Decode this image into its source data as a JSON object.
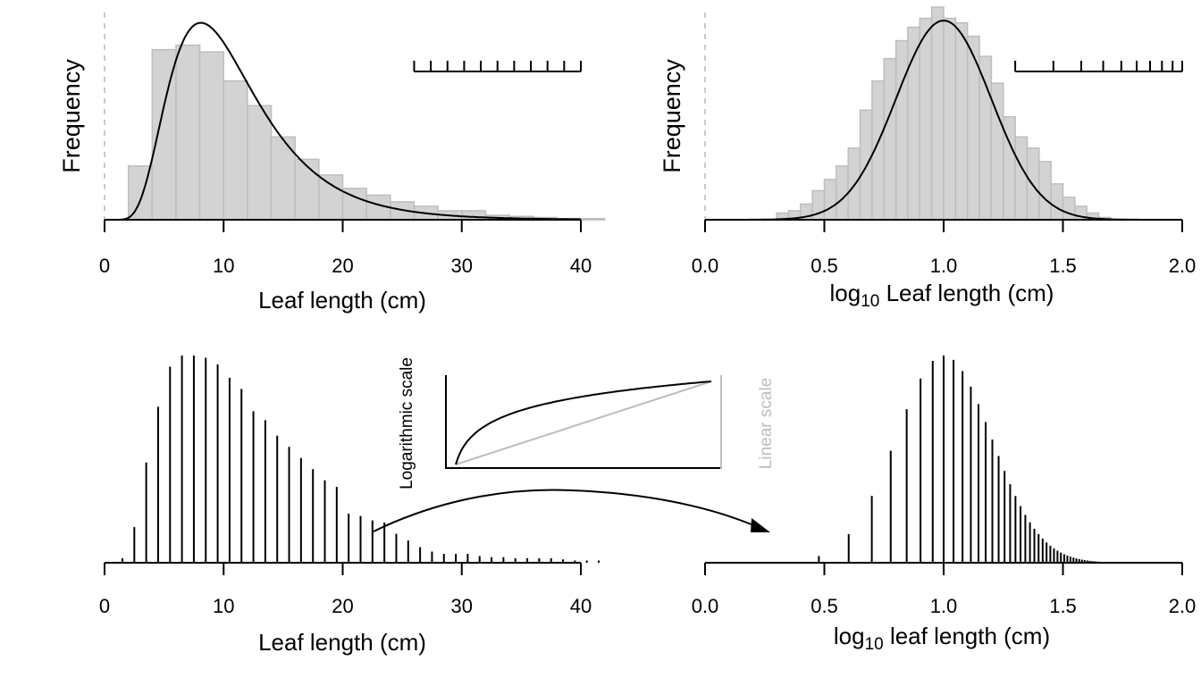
{
  "chart_data": [
    {
      "type": "bar",
      "panel": "top-left",
      "xlabel": "Leaf length (cm)",
      "ylabel": "Frequency",
      "xlim": [
        0,
        40
      ],
      "xticks": [
        "0",
        "10",
        "20",
        "30",
        "40"
      ],
      "bin_edges": [
        0,
        2,
        4,
        6,
        8,
        10,
        12,
        14,
        16,
        18,
        20,
        22,
        24,
        26,
        28,
        30,
        32,
        34,
        36,
        38,
        40,
        42
      ],
      "values": [
        0,
        24,
        76,
        78,
        75,
        62,
        51,
        37,
        27,
        20,
        14,
        11,
        8,
        6,
        4,
        4,
        2,
        1.5,
        1,
        0.5,
        0.5
      ],
      "curve": {
        "type": "lognormal",
        "mu_log10": 1.0,
        "sigma_log10": 0.2,
        "peak": 88
      },
      "scale_bar": {
        "x_start": 26,
        "x_end": 40,
        "ticks": 11
      },
      "reference_line_x": 0
    },
    {
      "type": "bar",
      "panel": "top-right",
      "xlabel_prefix": "log",
      "xlabel_sub": "10",
      "xlabel_suffix": " Leaf length (cm)",
      "ylabel": "Frequency",
      "xlim": [
        0,
        2
      ],
      "xticks": [
        "0.0",
        "0.5",
        "1.0",
        "1.5",
        "2.0"
      ],
      "bin_edges": [
        0.3,
        0.35,
        0.4,
        0.45,
        0.5,
        0.55,
        0.6,
        0.65,
        0.7,
        0.75,
        0.8,
        0.85,
        0.9,
        0.95,
        1.0,
        1.05,
        1.1,
        1.15,
        1.2,
        1.25,
        1.3,
        1.35,
        1.4,
        1.45,
        1.5,
        1.55,
        1.6,
        1.65,
        1.7
      ],
      "values": [
        3,
        4,
        7,
        13,
        18,
        24,
        32,
        49,
        62,
        72,
        80,
        86,
        90,
        95,
        90,
        88,
        82,
        73,
        61,
        46,
        37,
        32,
        26,
        16,
        10,
        6,
        3,
        1
      ],
      "curve": {
        "type": "normal",
        "mean": 1.0,
        "sd": 0.2,
        "peak": 89
      },
      "scale_bar": {
        "x_start": 1.3,
        "x_end": 2.0,
        "ticks": 10
      },
      "reference_line_x": 0
    },
    {
      "type": "spike",
      "panel": "bottom-left",
      "xlabel": "Leaf length (cm)",
      "xlim": [
        0,
        40
      ],
      "xticks": [
        "0",
        "10",
        "20",
        "30",
        "40"
      ],
      "x": [
        1.5,
        2.5,
        3.5,
        4.5,
        5.5,
        6.5,
        7.5,
        8.5,
        9.5,
        10.5,
        11.5,
        12.5,
        13.5,
        14.5,
        15.5,
        16.5,
        17.5,
        18.5,
        19.5,
        20.5,
        21.5,
        22.5,
        23.5,
        24.5,
        25.5,
        26.5,
        27.5,
        28.5,
        29.5,
        30.5,
        31.5,
        32.5,
        33.5,
        34.5,
        35.5,
        36.5,
        37.5,
        38.5,
        39.5,
        40.5,
        41.5
      ],
      "values": [
        2,
        16,
        45,
        70,
        88,
        93,
        93,
        92,
        89,
        83,
        78,
        68,
        64,
        57,
        52,
        47,
        42,
        37,
        34,
        22,
        21,
        19,
        18,
        13,
        10,
        7,
        5,
        4,
        4,
        4,
        3,
        2.5,
        2.5,
        2,
        2,
        2,
        2,
        1.5,
        1,
        1,
        1
      ]
    },
    {
      "type": "spike",
      "panel": "bottom-right",
      "xlabel_prefix": "log",
      "xlabel_sub": "10",
      "xlabel_suffix": " leaf length (cm)",
      "xlim": [
        0,
        2
      ],
      "xticks": [
        "0.0",
        "0.5",
        "1.0",
        "1.5",
        "2.0"
      ],
      "curve": {
        "type": "normal",
        "mean": 1.0,
        "sd": 0.2,
        "peak": 93
      }
    }
  ],
  "inset": {
    "log_label": "Logarithmic scale",
    "linear_label": "Linear scale"
  },
  "colors": {
    "bar_fill": "#d3d3d3",
    "bar_stroke": "#bdbdbd",
    "line": "#000000",
    "reference": "#bdbdbd"
  }
}
